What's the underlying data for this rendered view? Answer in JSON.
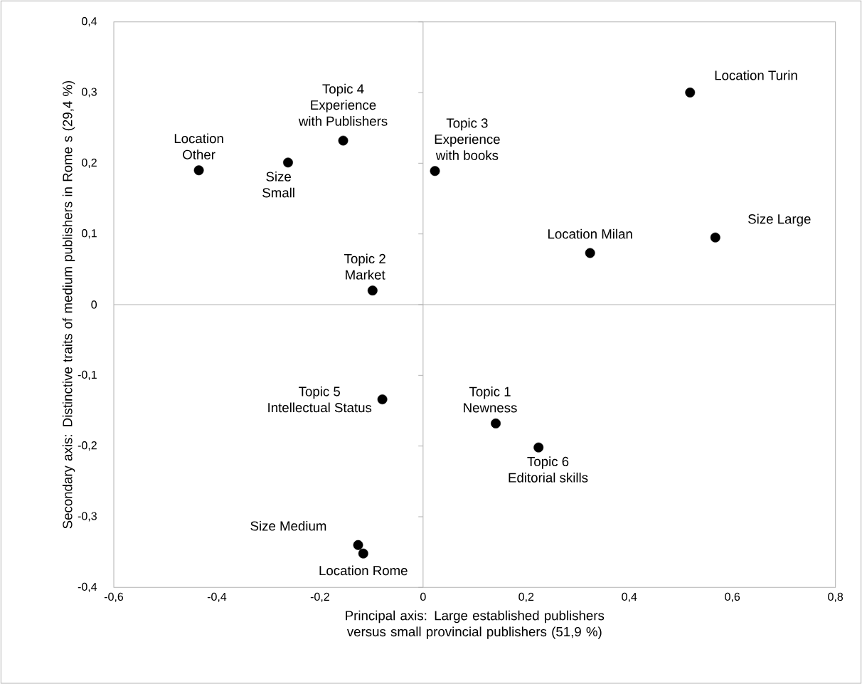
{
  "chart_data": {
    "type": "scatter",
    "xlabel": "Principal axis: Large established publishers versus small provincial publishers (51,9 %)",
    "ylabel": "Secondary axis: Distinctive traits of medium publishers in Rome s (29,4 %)",
    "x": [
      -0.435,
      -0.262,
      -0.155,
      -0.098,
      0.023,
      0.518,
      0.324,
      0.567,
      -0.079,
      0.141,
      0.224,
      -0.126,
      -0.116
    ],
    "values": [
      0.19,
      0.201,
      0.232,
      0.02,
      0.189,
      0.3,
      0.073,
      0.095,
      -0.134,
      -0.168,
      -0.202,
      -0.34,
      -0.352
    ],
    "color": "#000000",
    "marker": "circle",
    "annotations": [
      {
        "text": "Location Other",
        "x": -0.435,
        "y": 0.19
      },
      {
        "text": "Size Small",
        "x": -0.262,
        "y": 0.201
      },
      {
        "text": "Topic 4 Experience with Publishers",
        "x": -0.155,
        "y": 0.232
      },
      {
        "text": "Topic 2 Market",
        "x": -0.098,
        "y": 0.02
      },
      {
        "text": "Topic 3 Experience with books",
        "x": 0.023,
        "y": 0.189
      },
      {
        "text": "Location Turin",
        "x": 0.518,
        "y": 0.3
      },
      {
        "text": "Location Milan",
        "x": 0.324,
        "y": 0.073
      },
      {
        "text": "Size Large",
        "x": 0.567,
        "y": 0.095
      },
      {
        "text": "Topic 5 Intellectual Status",
        "x": -0.079,
        "y": -0.134
      },
      {
        "text": "Topic 1 Newness",
        "x": 0.141,
        "y": -0.168
      },
      {
        "text": "Topic 6 Editorial skills",
        "x": 0.224,
        "y": -0.202
      },
      {
        "text": "Size Medium",
        "x": -0.126,
        "y": -0.34
      },
      {
        "text": "Location Rome",
        "x": -0.116,
        "y": -0.352
      }
    ],
    "xlim": [
      -0.6,
      0.8
    ],
    "ylim": [
      -0.4,
      0.4
    ],
    "xticks": [
      {
        "value": -0.6,
        "label": "-0,6"
      },
      {
        "value": -0.4,
        "label": "-0,4"
      },
      {
        "value": -0.2,
        "label": "-0,2"
      },
      0,
      {
        "value": 0.2,
        "label": "0,2"
      },
      {
        "value": 0.4,
        "label": "0,4"
      },
      {
        "value": 0.6,
        "label": "0,6"
      },
      {
        "value": 0.8,
        "label": "0,8"
      }
    ],
    "yticks": [
      {
        "value": -0.4,
        "label": "-0,4"
      },
      {
        "value": -0.3,
        "label": "-0,3"
      },
      {
        "value": -0.2,
        "label": "-0,2"
      },
      {
        "value": -0.1,
        "label": "-0,1"
      },
      0,
      {
        "value": 0.1,
        "label": "0,1"
      },
      {
        "value": 0.2,
        "label": "0,2"
      },
      {
        "value": 0.3,
        "label": "0,3"
      },
      {
        "value": 0.4,
        "label": "0,4"
      }
    ]
  }
}
